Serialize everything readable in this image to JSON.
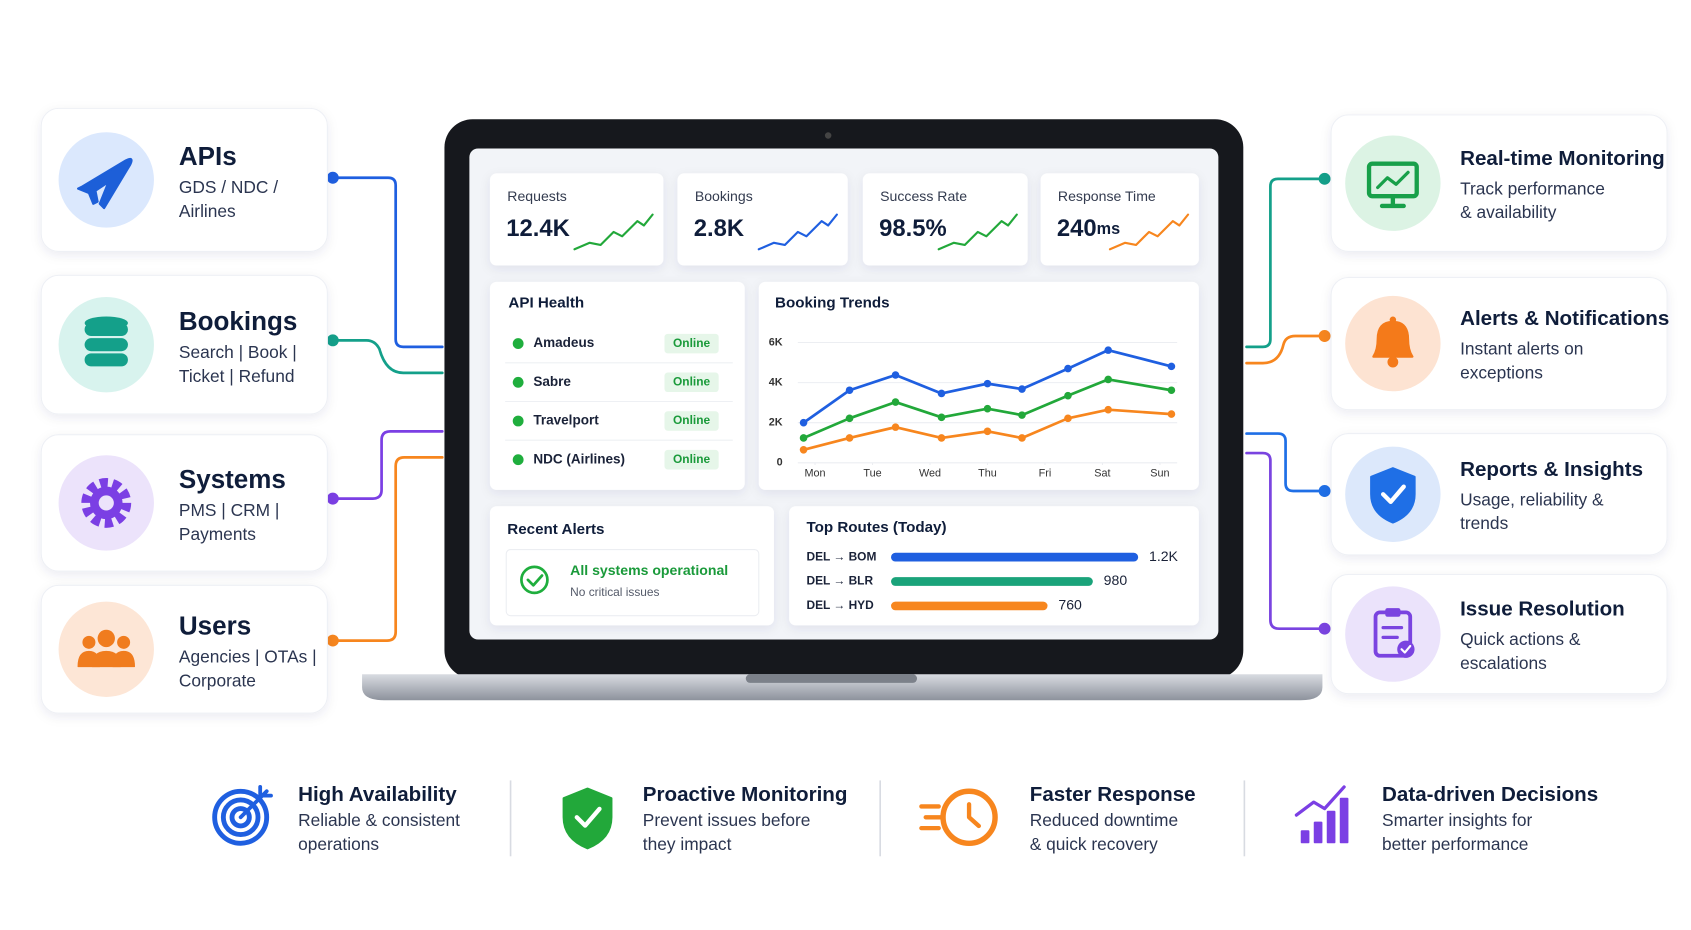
{
  "inputs": [
    {
      "title": "APIs",
      "lines": [
        "GDS / NDC /",
        "Airlines"
      ]
    },
    {
      "title": "Bookings",
      "lines": [
        "Search | Book |",
        "Ticket | Refund"
      ]
    },
    {
      "title": "Systems",
      "lines": [
        "PMS | CRM |",
        "Payments"
      ]
    },
    {
      "title": "Users",
      "lines": [
        "Agencies | OTAs |",
        "Corporate"
      ]
    }
  ],
  "outputs": [
    {
      "title": "Real-time Monitoring",
      "lines": [
        "Track performance",
        "& availability"
      ]
    },
    {
      "title": "Alerts & Notifications",
      "lines": [
        "Instant alerts on",
        "exceptions"
      ]
    },
    {
      "title": "Reports & Insights",
      "lines": [
        "Usage, reliability &",
        "trends"
      ]
    },
    {
      "title": "Issue Resolution",
      "lines": [
        "Quick actions &",
        "escalations"
      ]
    }
  ],
  "dashboard": {
    "kpis": [
      {
        "label": "Requests",
        "value": "12.4K"
      },
      {
        "label": "Bookings",
        "value": "2.8K"
      },
      {
        "label": "Success Rate",
        "value": "98.5%"
      },
      {
        "label": "Response Time",
        "value": "240",
        "unit": "ms"
      }
    ],
    "api_health": {
      "title": "API Health",
      "rows": [
        {
          "name": "Amadeus",
          "status": "Online"
        },
        {
          "name": "Sabre",
          "status": "Online"
        },
        {
          "name": "Travelport",
          "status": "Online"
        },
        {
          "name": "NDC (Airlines)",
          "status": "Online"
        }
      ]
    },
    "booking_trends": {
      "type": "line",
      "title": "Booking Trends",
      "x": [
        -0.2,
        0.6,
        1.4,
        2.2,
        3,
        3.6,
        4.4,
        5.1,
        6.2
      ],
      "xlim": [
        -0.3,
        6.3
      ],
      "xticks": [
        {
          "value": 0,
          "label": "Mon"
        },
        {
          "value": 1,
          "label": "Tue"
        },
        {
          "value": 2,
          "label": "Wed"
        },
        {
          "value": 3,
          "label": "Thu"
        },
        {
          "value": 4,
          "label": "Fri"
        },
        {
          "value": 5,
          "label": "Sat"
        },
        {
          "value": 6,
          "label": "Sun"
        }
      ],
      "ylim": [
        0,
        6000
      ],
      "yticks": [
        0,
        {
          "value": 2000,
          "label": "2K"
        },
        {
          "value": 4000,
          "label": "4K"
        },
        {
          "value": 6000,
          "label": "6K"
        }
      ],
      "grid": true,
      "series": [
        {
          "color": "#1f5fe0",
          "values": [
            2000,
            3620,
            4380,
            3460,
            3950,
            3680,
            4700,
            5620,
            4810
          ]
        },
        {
          "color": "#22a83a",
          "values": [
            1240,
            2220,
            3030,
            2270,
            2700,
            2380,
            3350,
            4160,
            3620
          ]
        },
        {
          "color": "#f7861e",
          "values": [
            650,
            1240,
            1780,
            1240,
            1570,
            1240,
            2220,
            2650,
            2430
          ]
        }
      ]
    },
    "recent_alerts": {
      "title": "Recent Alerts",
      "message": "All systems operational",
      "detail": "No critical issues"
    },
    "top_routes": {
      "type": "bar",
      "title": "Top Routes (Today)",
      "categories": [
        "DEL → BOM",
        "DEL → BLR",
        "DEL → HYD"
      ],
      "values": [
        1200,
        980,
        760
      ],
      "value_labels": [
        "1.2K",
        "980",
        "760"
      ],
      "colors": [
        "#1f5fe0",
        "#1aa37a",
        "#f7861e"
      ],
      "xlim": [
        0,
        1200
      ]
    }
  },
  "features": [
    {
      "title": "High Availability",
      "lines": [
        "Reliable & consistent",
        "operations"
      ]
    },
    {
      "title": "Proactive Monitoring",
      "lines": [
        "Prevent issues before",
        "they impact"
      ]
    },
    {
      "title": "Faster Response",
      "lines": [
        "Reduced downtime",
        "& quick recovery"
      ]
    },
    {
      "title": "Data-driven Decisions",
      "lines": [
        "Smarter insights for",
        "better performance"
      ]
    }
  ]
}
